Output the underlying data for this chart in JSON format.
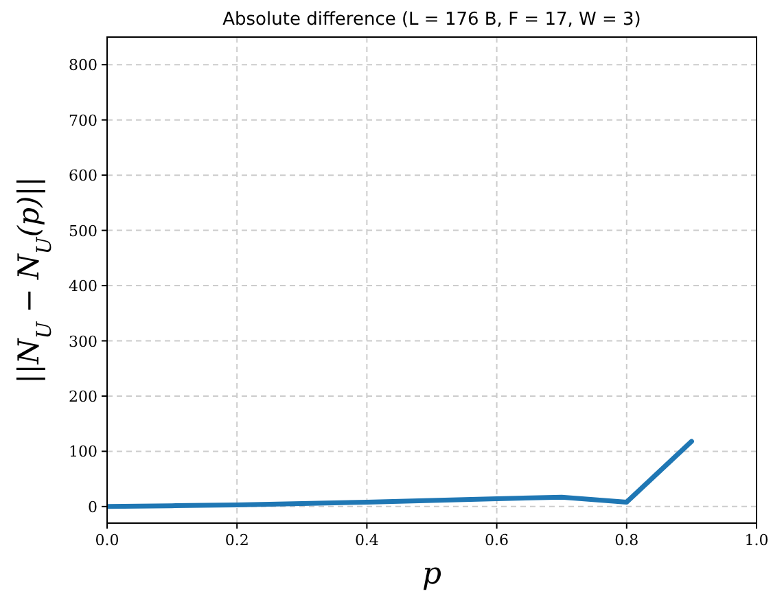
{
  "chart_data": {
    "type": "line",
    "title": "Absolute difference (L = 176 B, F = 17, W = 3)",
    "xlabel": "p",
    "ylabel": "||N$_{U}$ − N$_{U}$(p)||",
    "x": [
      0,
      0.1,
      0.2,
      0.3,
      0.4,
      0.5,
      0.6,
      0.7,
      0.8,
      0.9
    ],
    "series": [
      {
        "color": "#1f77b4",
        "values": [
          0,
          1.5,
          3,
          5.5,
          8,
          11,
          14,
          17,
          8,
          118
        ]
      }
    ],
    "xlim": [
      0,
      1
    ],
    "ylim": [
      -30,
      850
    ],
    "xticks": [
      {
        "value": 0,
        "label": "0.0"
      },
      0.2,
      0.4,
      0.6,
      0.8,
      {
        "value": 1,
        "label": "1.0"
      }
    ],
    "yticks": [
      0,
      100,
      200,
      300,
      400,
      500,
      600,
      700,
      800
    ],
    "grid": true,
    "marker": "none",
    "line_style": "solid"
  }
}
